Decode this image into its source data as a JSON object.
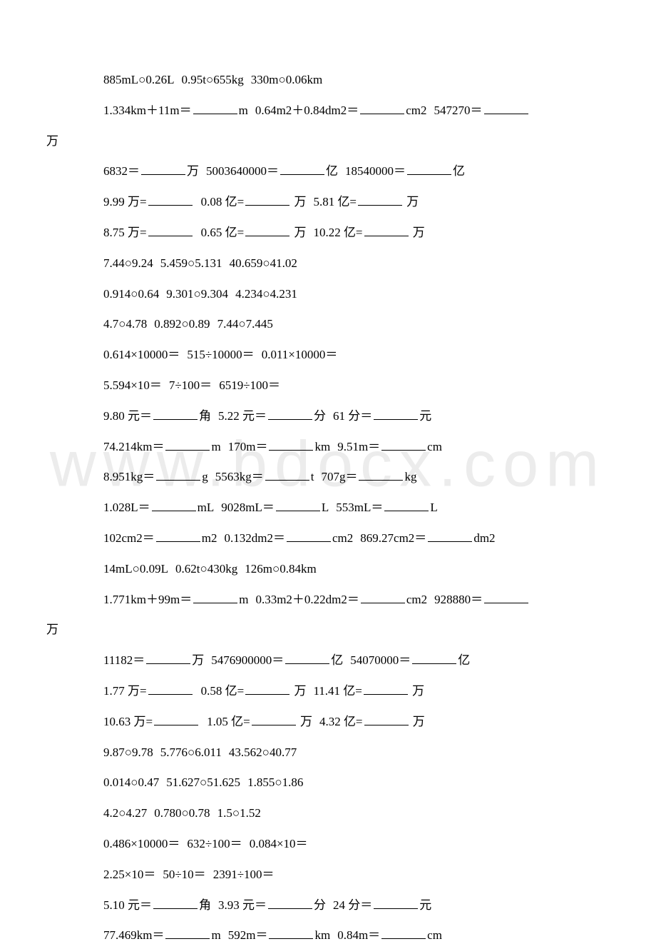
{
  "watermark": "www.bdocx.com",
  "lines": [
    {
      "type": "indented",
      "segments": [
        "885mL○0.26L",
        "0.95t○655kg",
        "330m○0.06km"
      ]
    },
    {
      "type": "wrap",
      "first": "1.334km＋11m＝",
      "blank": true,
      "after1": "m",
      "mid": "0.64m2＋0.84dm2＝",
      "blank2": true,
      "after2": "cm2",
      "tail": "547270＝",
      "blank3": true,
      "wrap": "万"
    },
    {
      "type": "fill3",
      "segments": [
        "6832＝",
        "万",
        "5003640000＝",
        "亿",
        "18540000＝",
        "亿"
      ]
    },
    {
      "type": "fill3b",
      "segments": [
        "9.99 万=",
        "",
        "0.08 亿=",
        "万",
        "5.81 亿=",
        "万"
      ]
    },
    {
      "type": "fill3b",
      "segments": [
        "8.75 万=",
        "",
        "0.65 亿=",
        "万",
        "10.22 亿=",
        "万"
      ]
    },
    {
      "type": "indented",
      "segments": [
        "7.44○9.24",
        "5.459○5.131",
        "40.659○41.02"
      ]
    },
    {
      "type": "indented",
      "segments": [
        "0.914○0.64",
        "9.301○9.304",
        "4.234○4.231"
      ]
    },
    {
      "type": "indented",
      "segments": [
        "4.7○4.78",
        "0.892○0.89",
        "7.44○7.445"
      ]
    },
    {
      "type": "indented",
      "segments": [
        "0.614×10000＝",
        "515÷10000＝",
        "0.011×10000＝"
      ]
    },
    {
      "type": "indented",
      "segments": [
        "5.594×10＝",
        "7÷100＝",
        "6519÷100＝"
      ]
    },
    {
      "type": "fill3",
      "segments": [
        "9.80 元＝",
        "角",
        "5.22 元＝",
        "分",
        "61 分＝",
        "元"
      ]
    },
    {
      "type": "fill3",
      "segments": [
        "74.214km＝",
        "m",
        "170m＝",
        "km",
        "9.51m＝",
        "cm"
      ]
    },
    {
      "type": "fill3",
      "segments": [
        "8.951kg＝",
        "g",
        "5563kg＝",
        "t",
        "707g＝",
        "kg"
      ]
    },
    {
      "type": "fill3",
      "segments": [
        "1.028L＝",
        "mL",
        "9028mL＝",
        "L",
        "553mL＝",
        "L"
      ]
    },
    {
      "type": "fill3",
      "segments": [
        "102cm2＝",
        "m2",
        "0.132dm2＝",
        "cm2",
        "869.27cm2＝",
        "dm2"
      ]
    },
    {
      "type": "indented",
      "segments": [
        "14mL○0.09L",
        "0.62t○430kg",
        "126m○0.84km"
      ]
    },
    {
      "type": "wrap",
      "first": "1.771km＋99m＝",
      "blank": true,
      "after1": "m",
      "mid": "0.33m2＋0.22dm2＝",
      "blank2": true,
      "after2": "cm2",
      "tail": "928880＝",
      "blank3": true,
      "wrap": "万"
    },
    {
      "type": "fill3",
      "segments": [
        "11182＝",
        "万",
        "5476900000＝",
        "亿",
        "54070000＝",
        "亿"
      ]
    },
    {
      "type": "fill3b",
      "segments": [
        "1.77 万=",
        "",
        "0.58 亿=",
        "万",
        "11.41 亿=",
        "万"
      ]
    },
    {
      "type": "fill3b",
      "segments": [
        "10.63 万=",
        "",
        "1.05 亿=",
        "万",
        "4.32 亿=",
        "万"
      ]
    },
    {
      "type": "indented",
      "segments": [
        "9.87○9.78",
        "5.776○6.011",
        "43.562○40.77"
      ]
    },
    {
      "type": "indented",
      "segments": [
        "0.014○0.47",
        "51.627○51.625",
        "1.855○1.86"
      ]
    },
    {
      "type": "indented",
      "segments": [
        "4.2○4.27",
        "0.780○0.78",
        "1.5○1.52"
      ]
    },
    {
      "type": "indented",
      "segments": [
        "0.486×10000＝",
        "632÷100＝",
        "0.084×10＝"
      ]
    },
    {
      "type": "indented",
      "segments": [
        "2.25×10＝",
        "50÷10＝",
        "2391÷100＝"
      ]
    },
    {
      "type": "fill3",
      "segments": [
        "5.10 元＝",
        "角",
        "3.93 元＝",
        "分",
        "24 分＝",
        "元"
      ]
    },
    {
      "type": "fill3",
      "segments": [
        "77.469km＝",
        "m",
        "592m＝",
        "km",
        "0.84m＝",
        "cm"
      ]
    }
  ]
}
